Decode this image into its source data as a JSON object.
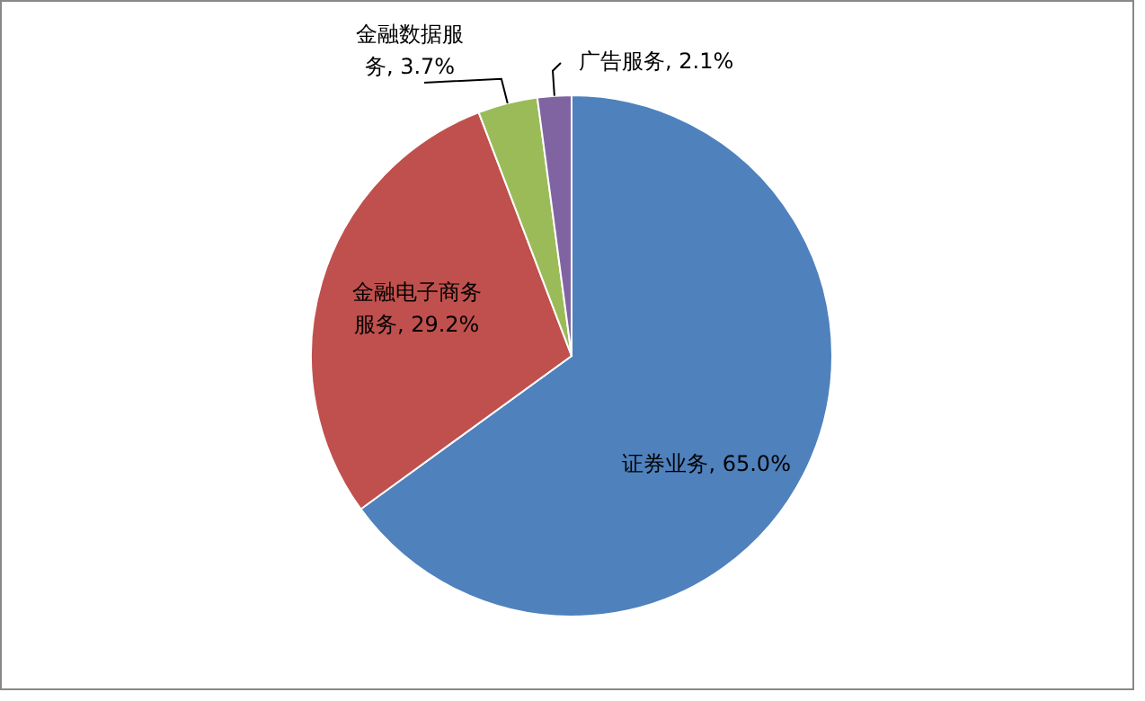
{
  "chart_data": {
    "type": "pie",
    "categories": [
      "证券业务",
      "金融电子商务服务",
      "金融数据服务",
      "广告服务"
    ],
    "values": [
      65.0,
      29.2,
      3.7,
      2.1
    ],
    "value_labels": [
      "65.0%",
      "29.2%",
      "3.7%",
      "2.1%"
    ],
    "colors": [
      "#4f81bd",
      "#c0504d",
      "#9bbb59",
      "#8064a2"
    ],
    "legend": false
  }
}
